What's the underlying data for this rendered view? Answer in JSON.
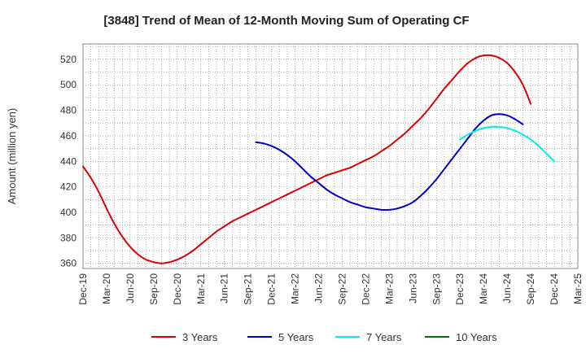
{
  "chart_data": {
    "type": "line",
    "title": "[3848]  Trend of Mean of 12-Month Moving Sum of Operating CF",
    "xlabel": "",
    "ylabel": "Amount (million yen)",
    "ylim": [
      356,
      532
    ],
    "yticks": [
      360,
      380,
      400,
      420,
      440,
      460,
      480,
      500,
      520
    ],
    "grid": true,
    "legend_position": "bottom",
    "x_tick_labels": [
      "Dec-19",
      "Mar-20",
      "Jun-20",
      "Sep-20",
      "Dec-20",
      "Mar-21",
      "Jun-21",
      "Sep-21",
      "Dec-21",
      "Mar-22",
      "Jun-22",
      "Sep-22",
      "Dec-22",
      "Mar-23",
      "Jun-23",
      "Sep-23",
      "Dec-23",
      "Mar-24",
      "Jun-24",
      "Sep-24",
      "Dec-24",
      "Mar-25"
    ],
    "x_range_months": [
      0,
      63
    ],
    "series": [
      {
        "name": "3 Years",
        "color": "#dd0000",
        "start_month": 0,
        "values": [
          436,
          427,
          416,
          403,
          391,
          381,
          373,
          367,
          363,
          361,
          360,
          361,
          363,
          366,
          370,
          375,
          380,
          385,
          389,
          393,
          396,
          399,
          402,
          405,
          408,
          411,
          414,
          417,
          420,
          423,
          426,
          429,
          431,
          433,
          435,
          438,
          441,
          444,
          448,
          452,
          457,
          462,
          468,
          474,
          481,
          489,
          497,
          504,
          511,
          517,
          521,
          523,
          523,
          521,
          517,
          510,
          500,
          485
        ]
      },
      {
        "name": "5 Years",
        "color": "#0000cc",
        "start_month": 22,
        "values": [
          455,
          454,
          452,
          449,
          445,
          440,
          434,
          428,
          423,
          418,
          414,
          411,
          408,
          406,
          404,
          403,
          402,
          402,
          403,
          405,
          408,
          413,
          419,
          426,
          434,
          442,
          450,
          458,
          466,
          472,
          476,
          477,
          476,
          473,
          469
        ]
      },
      {
        "name": "7 Years",
        "color": "#00eeee",
        "start_month": 48,
        "values": [
          457,
          461,
          464,
          466,
          467,
          467,
          466,
          464,
          461,
          457,
          452,
          446,
          440
        ]
      },
      {
        "name": "10 Years",
        "color": "#007700",
        "start_month": null,
        "values": []
      }
    ]
  }
}
